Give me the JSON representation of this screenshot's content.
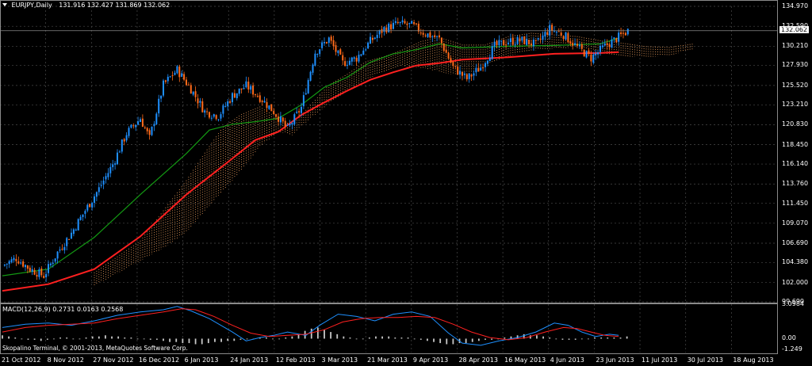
{
  "chart_header": {
    "symbol": "EURJPY,Daily",
    "ohlc": "131.916 132.427 131.869 132.062"
  },
  "macd_header": {
    "label": "MACD(12,26,9) 0.2731 0.0163 0.2568"
  },
  "copyright": "Skopalino Terminal, © 2001-2013, MetaQuotes Software Corp.",
  "current_price": "132.062",
  "colors": {
    "background": "#000000",
    "bull_candle": "#1e90ff",
    "bear_candle": "#ff6a1a",
    "slow_ma": "#ff2020",
    "fast_ma": "#139a13",
    "ichimoku_cloud": "#f4a460",
    "macd_line": "#1e90ff",
    "signal_line": "#ff2020",
    "histogram": "#c8c8c8",
    "grid": "#4a4a4a"
  },
  "chart_data": [
    {
      "type": "candlestick",
      "title": "EURJPY,Daily",
      "x_tick_labels": [
        "21 Oct 2012",
        "8 Nov 2012",
        "27 Nov 2012",
        "16 Dec 2012",
        "6 Jan 2013",
        "24 Jan 2013",
        "12 Feb 2013",
        "3 Mar 2013",
        "21 Mar 2013",
        "9 Apr 2013",
        "28 Apr 2013",
        "16 May 2013",
        "4 Jun 2013",
        "23 Jun 2013",
        "11 Jul 2013",
        "30 Jul 2013",
        "18 Aug 2013"
      ],
      "y_tick_labels": [
        "134.970",
        "132.590",
        "130.210",
        "127.930",
        "125.520",
        "123.210",
        "120.830",
        "118.450",
        "116.140",
        "113.760",
        "111.450",
        "109.070",
        "106.690",
        "104.380",
        "102.000",
        "99.690"
      ],
      "ylim": [
        99.69,
        134.97
      ],
      "grid": true,
      "series_path": [
        [
          0,
          104.0
        ],
        [
          6,
          104.9
        ],
        [
          12,
          103.6
        ],
        [
          18,
          102.8
        ],
        [
          24,
          105.6
        ],
        [
          30,
          107.9
        ],
        [
          36,
          110.6
        ],
        [
          42,
          113.2
        ],
        [
          48,
          116.1
        ],
        [
          54,
          119.8
        ],
        [
          60,
          121.6
        ],
        [
          64,
          119.2
        ],
        [
          70,
          125.6
        ],
        [
          76,
          127.4
        ],
        [
          82,
          125.1
        ],
        [
          88,
          122.4
        ],
        [
          94,
          121.9
        ],
        [
          100,
          124.3
        ],
        [
          106,
          125.5
        ],
        [
          112,
          124.1
        ],
        [
          118,
          122.4
        ],
        [
          124,
          120.3
        ],
        [
          130,
          122.9
        ],
        [
          136,
          129.5
        ],
        [
          142,
          131.1
        ],
        [
          148,
          128.2
        ],
        [
          154,
          128.8
        ],
        [
          160,
          130.8
        ],
        [
          166,
          132.3
        ],
        [
          172,
          132.9
        ],
        [
          178,
          132.7
        ],
        [
          184,
          131.7
        ],
        [
          190,
          131.1
        ],
        [
          196,
          127.7
        ],
        [
          202,
          126.3
        ],
        [
          208,
          127.7
        ],
        [
          214,
          130.2
        ],
        [
          220,
          130.8
        ],
        [
          226,
          130.9
        ],
        [
          232,
          130.4
        ],
        [
          238,
          132.3
        ],
        [
          244,
          131.6
        ],
        [
          250,
          130.1
        ],
        [
          256,
          128.8
        ],
        [
          262,
          130.2
        ],
        [
          268,
          131.3
        ],
        [
          272,
          132.06
        ]
      ],
      "moving_averages": [
        {
          "color": "slow_ma",
          "points": [
            [
              0,
              101.0
            ],
            [
              20,
              101.8
            ],
            [
              40,
              103.6
            ],
            [
              60,
              107.5
            ],
            [
              80,
              112.5
            ],
            [
              100,
              116.8
            ],
            [
              110,
              119.0
            ],
            [
              120,
              120.0
            ],
            [
              130,
              122.0
            ],
            [
              140,
              123.5
            ],
            [
              150,
              124.9
            ],
            [
              160,
              126.2
            ],
            [
              170,
              127.1
            ],
            [
              180,
              127.9
            ],
            [
              190,
              128.2
            ],
            [
              200,
              128.6
            ],
            [
              220,
              128.9
            ],
            [
              240,
              129.3
            ],
            [
              260,
              129.4
            ],
            [
              268,
              129.5
            ]
          ]
        },
        {
          "color": "fast_ma",
          "points": [
            [
              0,
              102.8
            ],
            [
              20,
              103.6
            ],
            [
              40,
              107.4
            ],
            [
              60,
              112.5
            ],
            [
              80,
              117.4
            ],
            [
              90,
              120.2
            ],
            [
              100,
              120.9
            ],
            [
              110,
              121.2
            ],
            [
              120,
              121.6
            ],
            [
              130,
              123.2
            ],
            [
              140,
              125.3
            ],
            [
              150,
              126.5
            ],
            [
              160,
              128.3
            ],
            [
              170,
              129.3
            ],
            [
              180,
              129.8
            ],
            [
              190,
              130.5
            ],
            [
              200,
              130.0
            ],
            [
              220,
              130.2
            ],
            [
              240,
              130.3
            ],
            [
              260,
              130.5
            ],
            [
              268,
              131.2
            ]
          ]
        }
      ],
      "ichimoku_cloud": [
        [
          40,
          103.2,
          101.6
        ],
        [
          60,
          107.0,
          104.6
        ],
        [
          70,
          110.6,
          106.1
        ],
        [
          80,
          114.2,
          108.0
        ],
        [
          88,
          117.5,
          110.5
        ],
        [
          96,
          120.6,
          113.0
        ],
        [
          104,
          122.1,
          115.4
        ],
        [
          112,
          123.0,
          118.2
        ],
        [
          120,
          121.6,
          120.0
        ],
        [
          126,
          120.8,
          119.6
        ],
        [
          134,
          123.2,
          121.6
        ],
        [
          142,
          125.6,
          123.3
        ],
        [
          150,
          126.9,
          124.8
        ],
        [
          158,
          128.4,
          126.2
        ],
        [
          166,
          129.0,
          127.2
        ],
        [
          174,
          129.8,
          127.8
        ],
        [
          182,
          130.8,
          127.6
        ],
        [
          190,
          131.3,
          127.2
        ],
        [
          200,
          130.4,
          126.5
        ],
        [
          210,
          130.4,
          127.8
        ],
        [
          220,
          131.4,
          129.0
        ],
        [
          230,
          131.8,
          129.7
        ],
        [
          240,
          131.6,
          129.9
        ],
        [
          250,
          131.4,
          130.1
        ],
        [
          260,
          130.9,
          129.4
        ],
        [
          270,
          130.6,
          129.0
        ],
        [
          280,
          130.2,
          128.9
        ],
        [
          290,
          130.1,
          129.1
        ],
        [
          300,
          130.5,
          129.8
        ]
      ]
    },
    {
      "type": "bar",
      "title": "MACD(12,26,9) 0.2731 0.0163 0.2568",
      "y_tick_labels": [
        "3.0984",
        "0.00",
        "-1.249"
      ],
      "ylim": [
        -1.249,
        3.0984
      ],
      "macd_line": [
        [
          0,
          1.0
        ],
        [
          10,
          1.3
        ],
        [
          20,
          1.4
        ],
        [
          30,
          1.2
        ],
        [
          40,
          1.6
        ],
        [
          50,
          2.1
        ],
        [
          60,
          2.4
        ],
        [
          70,
          2.6
        ],
        [
          76,
          2.9
        ],
        [
          82,
          2.5
        ],
        [
          90,
          1.8
        ],
        [
          100,
          0.6
        ],
        [
          106,
          -0.2
        ],
        [
          112,
          0.1
        ],
        [
          118,
          0.3
        ],
        [
          124,
          0.6
        ],
        [
          132,
          0.3
        ],
        [
          138,
          1.2
        ],
        [
          146,
          2.2
        ],
        [
          154,
          2.0
        ],
        [
          162,
          1.6
        ],
        [
          170,
          2.2
        ],
        [
          178,
          2.4
        ],
        [
          186,
          2.0
        ],
        [
          194,
          0.5
        ],
        [
          200,
          -0.4
        ],
        [
          208,
          -0.6
        ],
        [
          216,
          -0.2
        ],
        [
          224,
          0.1
        ],
        [
          232,
          0.6
        ],
        [
          240,
          1.4
        ],
        [
          246,
          1.2
        ],
        [
          252,
          0.6
        ],
        [
          258,
          0.2
        ],
        [
          264,
          0.4
        ],
        [
          268,
          0.3
        ]
      ],
      "signal_line": [
        [
          0,
          0.6
        ],
        [
          10,
          1.0
        ],
        [
          20,
          1.2
        ],
        [
          30,
          1.3
        ],
        [
          40,
          1.4
        ],
        [
          50,
          1.8
        ],
        [
          60,
          2.1
        ],
        [
          70,
          2.4
        ],
        [
          78,
          2.7
        ],
        [
          84,
          2.6
        ],
        [
          92,
          2.0
        ],
        [
          100,
          1.2
        ],
        [
          108,
          0.5
        ],
        [
          116,
          0.2
        ],
        [
          124,
          0.3
        ],
        [
          132,
          0.4
        ],
        [
          140,
          0.8
        ],
        [
          148,
          1.5
        ],
        [
          156,
          1.8
        ],
        [
          164,
          1.9
        ],
        [
          172,
          1.9
        ],
        [
          180,
          2.0
        ],
        [
          188,
          1.9
        ],
        [
          196,
          1.3
        ],
        [
          204,
          0.6
        ],
        [
          212,
          0.1
        ],
        [
          220,
          -0.1
        ],
        [
          228,
          0.1
        ],
        [
          236,
          0.6
        ],
        [
          244,
          1.0
        ],
        [
          250,
          0.9
        ],
        [
          256,
          0.6
        ],
        [
          262,
          0.3
        ],
        [
          268,
          0.2
        ]
      ],
      "histogram": [
        0.3,
        0.2,
        0.1,
        0.0,
        -0.1,
        -0.1,
        -0.2,
        -0.1,
        0.0,
        0.1,
        0.1,
        0.0,
        0.0,
        0.1,
        0.2,
        0.2,
        0.3,
        0.2,
        0.2,
        0.1,
        0.1,
        0.0,
        0.0,
        -0.1,
        -0.1,
        -0.2,
        -0.3,
        -0.3,
        -0.4,
        -0.4,
        -0.5,
        -0.5,
        -0.4,
        -0.3,
        -0.3,
        -0.2,
        -0.2,
        -0.1,
        0.0,
        0.0,
        0.1,
        0.1,
        0.0,
        0.0,
        0.1,
        0.2,
        0.4,
        0.7,
        0.9,
        1.0,
        0.8,
        0.6,
        0.4,
        0.2,
        0.1,
        0.0,
        0.0,
        0.1,
        0.2,
        0.2,
        0.2,
        0.1,
        0.1,
        0.1,
        0.0,
        -0.1,
        -0.2,
        -0.3,
        -0.4,
        -0.5,
        -0.5,
        -0.4,
        -0.4,
        -0.3,
        -0.2,
        -0.1,
        -0.1,
        0.0,
        0.1,
        0.2,
        0.3,
        0.4,
        0.3,
        0.3,
        0.2,
        0.1,
        0.0,
        -0.1,
        -0.1,
        -0.1,
        0.0,
        0.0,
        0.1,
        0.1,
        0.1,
        0.1,
        0.1,
        0.2
      ]
    }
  ]
}
